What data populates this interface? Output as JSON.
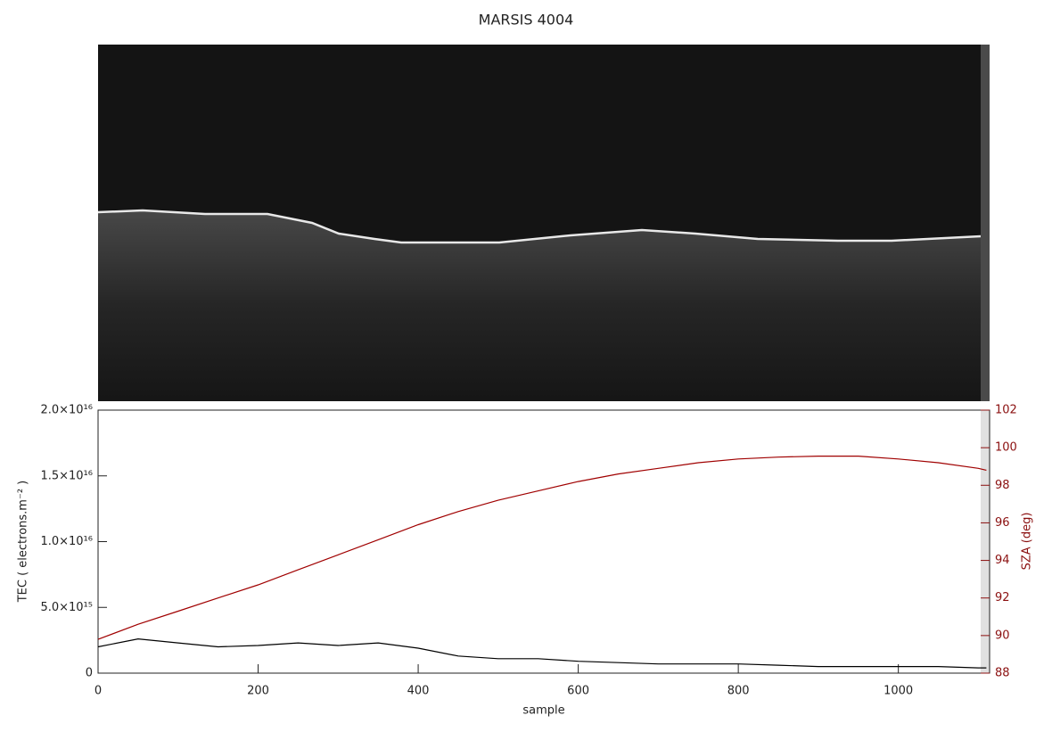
{
  "chart_data": {
    "type": "line",
    "title": "MARSIS 4004",
    "x_label": "sample",
    "y_label": "TEC ( electrons.m⁻² )",
    "y2_label": "SZA (deg)",
    "xlim": [
      0,
      1114
    ],
    "xticks": [
      0,
      200,
      400,
      600,
      800,
      1000
    ],
    "ylim": [
      0,
      2e+16
    ],
    "yticks": [
      0,
      {
        "value": 5000000000000000.0,
        "label": "5.0×10¹⁵"
      },
      {
        "value": 1e+16,
        "label": "1.0×10¹⁶"
      },
      {
        "value": 1.5e+16,
        "label": "1.5×10¹⁶"
      },
      {
        "value": 2e+16,
        "label": "2.0×10¹⁶"
      }
    ],
    "y2lim": [
      88,
      102
    ],
    "y2ticks": [
      88,
      90,
      92,
      94,
      96,
      98,
      100,
      102
    ],
    "x": [
      0,
      50,
      100,
      150,
      200,
      250,
      300,
      350,
      400,
      450,
      500,
      550,
      600,
      650,
      700,
      750,
      800,
      850,
      900,
      950,
      1000,
      1050,
      1100,
      1110
    ],
    "series": [
      {
        "name": "TEC",
        "color": "#000000",
        "axis": "y",
        "values": [
          2000000000000000.0,
          2600000000000000.0,
          2300000000000000.0,
          2000000000000000.0,
          2100000000000000.0,
          2300000000000000.0,
          2100000000000000.0,
          2300000000000000.0,
          1900000000000000.0,
          1300000000000000.0,
          1100000000000000.0,
          1100000000000000.0,
          900000000000000.0,
          800000000000000.0,
          700000000000000.0,
          700000000000000.0,
          700000000000000.0,
          600000000000000.0,
          500000000000000.0,
          500000000000000.0,
          500000000000000.0,
          500000000000000.0,
          400000000000000.0,
          400000000000000.0
        ]
      },
      {
        "name": "SZA",
        "color": "#a00000",
        "axis": "y2",
        "values": [
          89.8,
          90.6,
          91.3,
          92.0,
          92.7,
          93.5,
          94.3,
          95.1,
          95.9,
          96.6,
          97.2,
          97.7,
          98.2,
          98.6,
          98.9,
          99.2,
          99.4,
          99.5,
          99.55,
          99.55,
          99.4,
          99.2,
          98.9,
          98.8
        ]
      }
    ]
  }
}
